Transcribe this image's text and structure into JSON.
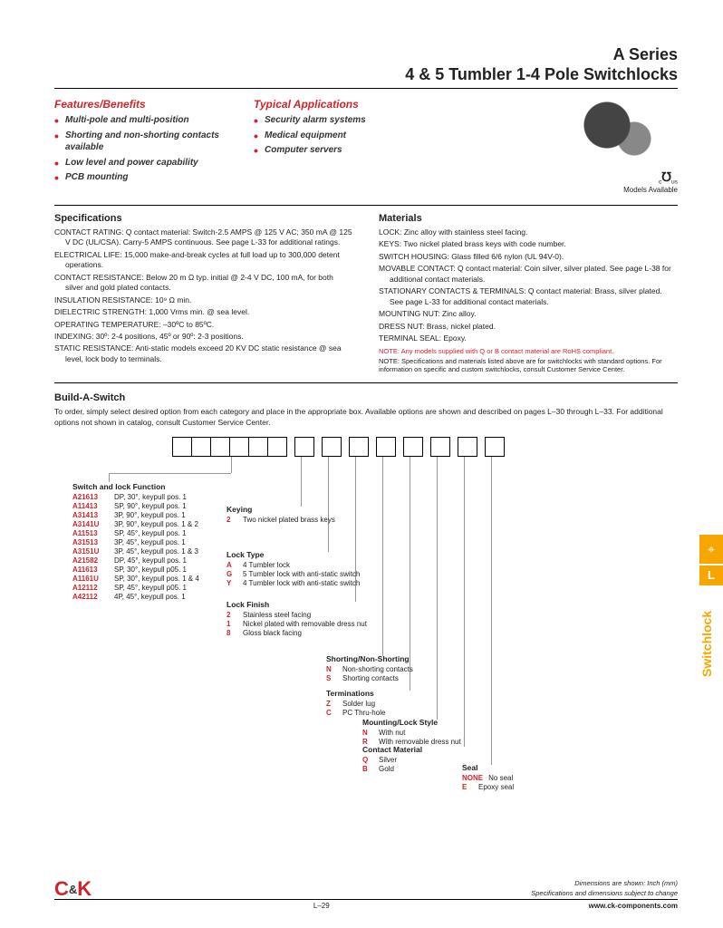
{
  "title_line1": "A Series",
  "title_line2": "4 & 5 Tumbler 1-4 Pole Switchlocks",
  "features_head": "Features/Benefits",
  "features": [
    "Multi-pole and multi-position",
    "Shorting and non-shorting contacts available",
    "Low level and power capability",
    "PCB mounting"
  ],
  "apps_head": "Typical Applications",
  "apps": [
    "Security alarm systems",
    "Medical equipment",
    "Computer servers"
  ],
  "ul_text": "Models Available",
  "specs_head": "Specifications",
  "specs": [
    "CONTACT RATING: Q contact material: Switch-2.5 AMPS @ 125 V AC; 350 mA @ 125 V DC (UL/CSA). Carry-5 AMPS continuous. See page L-33 for additional ratings.",
    "ELECTRICAL LIFE: 15,000 make-and-break cycles at full load up to 300,000 detent operations.",
    "CONTACT RESISTANCE: Below 20 m Ω typ. initial @ 2-4 V DC, 100 mA, for both silver and gold plated contacts.",
    "INSULATION RESISTANCE: 10⁹ Ω min.",
    "DIELECTRIC STRENGTH: 1,000 Vrms min. @ sea level.",
    "OPERATING TEMPERATURE: –30ºC to 85ºC.",
    "INDEXING: 30º: 2-4 positions, 45º or 90º: 2-3 positions.",
    "STATIC RESISTANCE: Anti-static models exceed 20 KV DC static resistance @ sea level, lock body to terminals."
  ],
  "materials_head": "Materials",
  "materials": [
    "LOCK: Zinc alloy with stainless steel facing.",
    "KEYS: Two nickel plated brass keys with code number.",
    "SWITCH HOUSING: Glass filled 6/6 nylon (UL 94V-0).",
    "MOVABLE CONTACT: Q contact material: Coin silver, silver plated. See page L-38 for additional contact materials.",
    "STATIONARY CONTACTS & TERMINALS: Q contact material: Brass, silver plated. See page L-33 for additional contact materials.",
    "MOUNTING NUT: Zinc alloy.",
    "DRESS NUT: Brass, nickel plated.",
    "TERMINAL SEAL: Epoxy."
  ],
  "mat_note_red": "NOTE: Any models supplied with Q or B contact material are RoHS compliant.",
  "mat_note": "NOTE: Specifications and materials listed above are for switchlocks with standard options. For information on specific and custom switchlocks, consult Customer Service Center.",
  "build_head": "Build-A-Switch",
  "build_intro": "To order, simply select desired option from each category and place in the appropriate box. Available options are shown and described on pages L–30 through L–33. For additional options not shown in catalog, consult Customer Service Center.",
  "func_head": "Switch and lock Function",
  "func": [
    {
      "c": "A21613",
      "d": "DP, 30°, keypull pos. 1"
    },
    {
      "c": "A11413",
      "d": "SP, 90°, keypull pos. 1"
    },
    {
      "c": "A31413",
      "d": "3P, 90°, keypull pos. 1"
    },
    {
      "c": "A3141U",
      "d": "3P, 90°, keypull pos. 1 & 2"
    },
    {
      "c": "A11513",
      "d": "SP, 45°, keypull pos. 1"
    },
    {
      "c": "A31513",
      "d": "3P, 45°, keypull pos. 1"
    },
    {
      "c": "A3151U",
      "d": "3P, 45°, keypull pos. 1 & 3"
    },
    {
      "c": "A21582",
      "d": "DP, 45°, keypull pos. 1"
    },
    {
      "c": "A11613",
      "d": "SP, 30°, keypull p05. 1"
    },
    {
      "c": "A1161U",
      "d": "SP, 30°, keypull pos. 1 & 4"
    },
    {
      "c": "A12112",
      "d": "SP, 45°, keypull p05. 1"
    },
    {
      "c": "A42112",
      "d": "4P, 45°, keypull pos. 1"
    }
  ],
  "keying_head": "Keying",
  "keying": [
    {
      "c": "2",
      "d": "Two nickel plated brass keys"
    }
  ],
  "locktype_head": "Lock Type",
  "locktype": [
    {
      "c": "A",
      "d": "4 Tumbler lock"
    },
    {
      "c": "G",
      "d": "5 Tumbler lock with anti-static switch"
    },
    {
      "c": "Y",
      "d": "4 Tumbler lock with anti-static switch"
    }
  ],
  "lockfinish_head": "Lock Finish",
  "lockfinish": [
    {
      "c": "2",
      "d": "Stainless steel facing"
    },
    {
      "c": "1",
      "d": "Nickel plated with removable dress nut"
    },
    {
      "c": "8",
      "d": "Gloss black facing"
    }
  ],
  "shorting_head": "Shorting/Non-Shorting",
  "shorting": [
    {
      "c": "N",
      "d": "Non-shorting contacts"
    },
    {
      "c": "S",
      "d": "Shorting contacts"
    }
  ],
  "term_head": "Terminations",
  "term": [
    {
      "c": "Z",
      "d": "Solder lug"
    },
    {
      "c": "C",
      "d": "PC Thru-hole"
    }
  ],
  "mount_head": "Mounting/Lock Style",
  "mount": [
    {
      "c": "N",
      "d": "With nut"
    },
    {
      "c": "R",
      "d": "With removable dress nut"
    }
  ],
  "contact_head": "Contact Material",
  "contact": [
    {
      "c": "Q",
      "d": "Silver"
    },
    {
      "c": "B",
      "d": "Gold"
    }
  ],
  "seal_head": "Seal",
  "seal": [
    {
      "c": "NONE",
      "d": "No seal"
    },
    {
      "c": "E",
      "d": "Epoxy seal"
    }
  ],
  "side_label": "Switchlock",
  "side_L": "L",
  "foot_dim": "Dimensions are shown: Inch (mm)",
  "foot_subj": "Specifications and dimensions subject to change",
  "page_num": "L–29",
  "url": "www.ck-components.com",
  "logo_main": "C",
  "logo_amp": "&",
  "logo_k": "K"
}
